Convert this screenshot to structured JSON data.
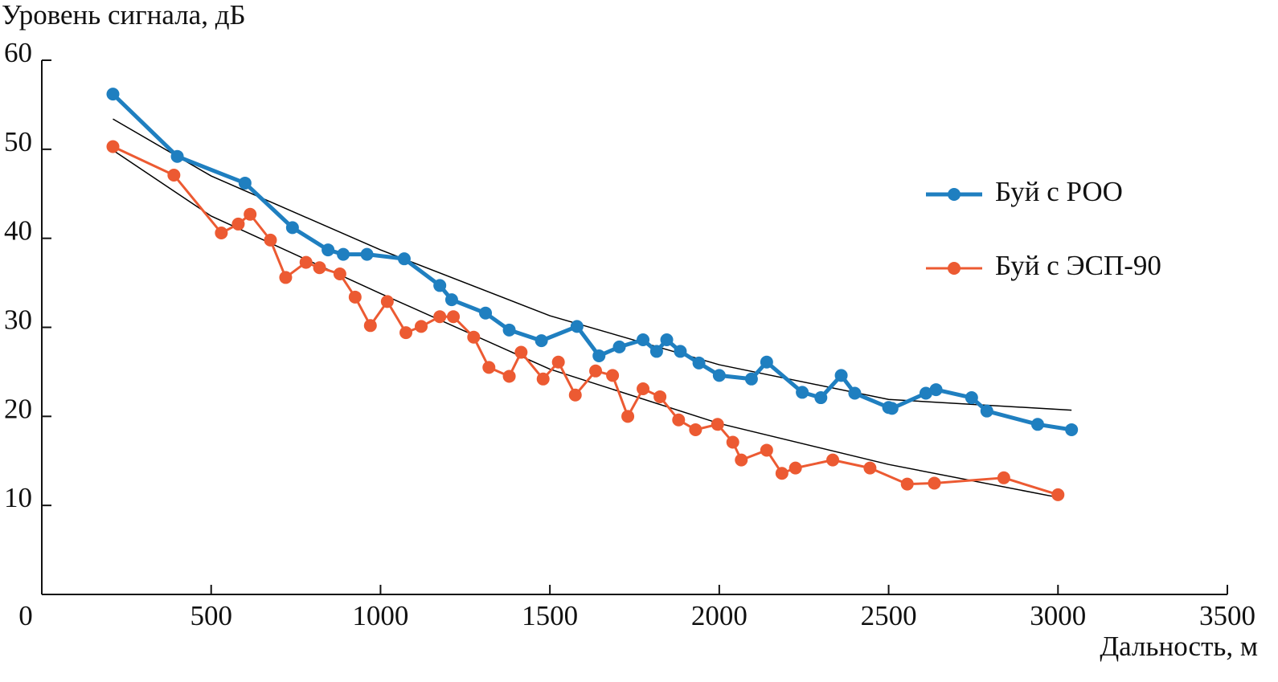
{
  "chart_data": {
    "type": "line",
    "ylabel": "Уровень сигнала, дБ",
    "xlabel": "Дальность, м",
    "xlim": [
      0,
      3500
    ],
    "xticks": [
      0,
      500,
      1000,
      1500,
      2000,
      2500,
      3000,
      3500
    ],
    "ylim": [
      0,
      60
    ],
    "yticks": [
      10,
      20,
      30,
      40,
      50,
      60
    ],
    "grid": false,
    "legend": "right",
    "series": [
      {
        "name": "Буй с РОО",
        "color": "#1f7fc0",
        "x": [
          210,
          400,
          600,
          740,
          845,
          890,
          960,
          1070,
          1175,
          1210,
          1310,
          1380,
          1475,
          1580,
          1645,
          1705,
          1775,
          1815,
          1845,
          1885,
          1940,
          2000,
          2095,
          2140,
          2245,
          2300,
          2360,
          2400,
          2500,
          2510,
          2610,
          2640,
          2745,
          2790,
          2940,
          3040
        ],
        "values": [
          56.2,
          49.2,
          46.2,
          41.2,
          38.7,
          38.2,
          38.2,
          37.7,
          34.7,
          33.1,
          31.6,
          29.7,
          28.5,
          30.1,
          26.8,
          27.8,
          28.6,
          27.3,
          28.6,
          27.3,
          26.0,
          24.6,
          24.2,
          26.1,
          22.7,
          22.1,
          24.6,
          22.6,
          21.0,
          20.9,
          22.6,
          23.0,
          22.1,
          20.6,
          19.1,
          18.5
        ]
      },
      {
        "name": "Буй с ЭСП-90",
        "color": "#ec5a32",
        "x": [
          210,
          390,
          530,
          580,
          615,
          675,
          720,
          780,
          820,
          880,
          925,
          970,
          1020,
          1075,
          1120,
          1175,
          1215,
          1275,
          1320,
          1380,
          1415,
          1480,
          1525,
          1575,
          1635,
          1685,
          1730,
          1775,
          1825,
          1880,
          1930,
          1995,
          2040,
          2065,
          2140,
          2185,
          2225,
          2335,
          2445,
          2555,
          2635,
          2840,
          3000
        ],
        "values": [
          50.3,
          47.1,
          40.6,
          41.6,
          42.7,
          39.8,
          35.6,
          37.3,
          36.7,
          36.0,
          33.4,
          30.2,
          32.9,
          29.4,
          30.1,
          31.2,
          31.2,
          28.9,
          25.5,
          24.5,
          27.2,
          24.2,
          26.1,
          22.4,
          25.1,
          24.6,
          20.0,
          23.1,
          22.2,
          19.6,
          18.5,
          19.1,
          17.1,
          15.1,
          16.2,
          13.6,
          14.2,
          15.1,
          14.2,
          12.4,
          12.5,
          13.1,
          11.2
        ]
      }
    ],
    "trendlines": [
      {
        "color": "#000000",
        "x": [
          210,
          500,
          1000,
          1500,
          2000,
          2500,
          3040
        ],
        "values": [
          53.4,
          47.0,
          38.7,
          31.3,
          25.8,
          21.9,
          20.7
        ]
      },
      {
        "color": "#000000",
        "x": [
          210,
          500,
          1000,
          1500,
          2000,
          2500,
          3000
        ],
        "values": [
          49.9,
          42.5,
          33.8,
          25.3,
          19.2,
          14.6,
          10.9
        ]
      }
    ]
  }
}
